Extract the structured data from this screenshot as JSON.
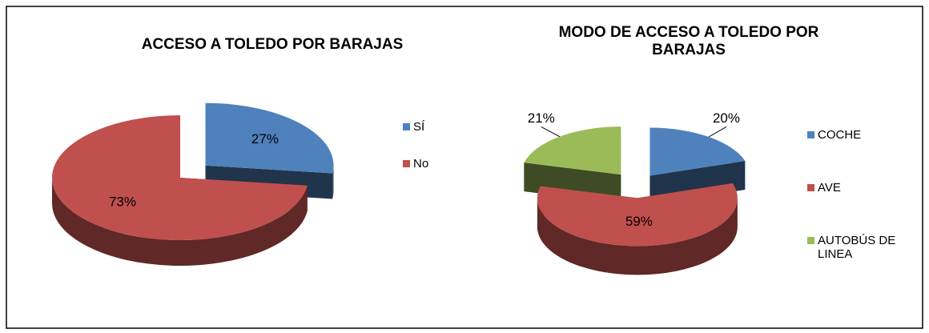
{
  "chart_data": [
    {
      "type": "pie",
      "title": "ACCESO A TOLEDO POR BARAJAS",
      "categories": [
        "SÍ",
        "No"
      ],
      "values": [
        27,
        73
      ],
      "value_labels": [
        "27%",
        "73%"
      ],
      "colors": [
        "#4f81bd",
        "#c0504d"
      ]
    },
    {
      "type": "pie",
      "title": "MODO DE ACCESO A TOLEDO POR BARAJAS",
      "categories": [
        "COCHE",
        "AVE",
        "AUTOBÚS DE LINEA"
      ],
      "values": [
        20,
        59,
        21
      ],
      "value_labels": [
        "20%",
        "59%",
        "21%"
      ],
      "colors": [
        "#4f81bd",
        "#c0504d",
        "#9bbb59"
      ]
    }
  ]
}
